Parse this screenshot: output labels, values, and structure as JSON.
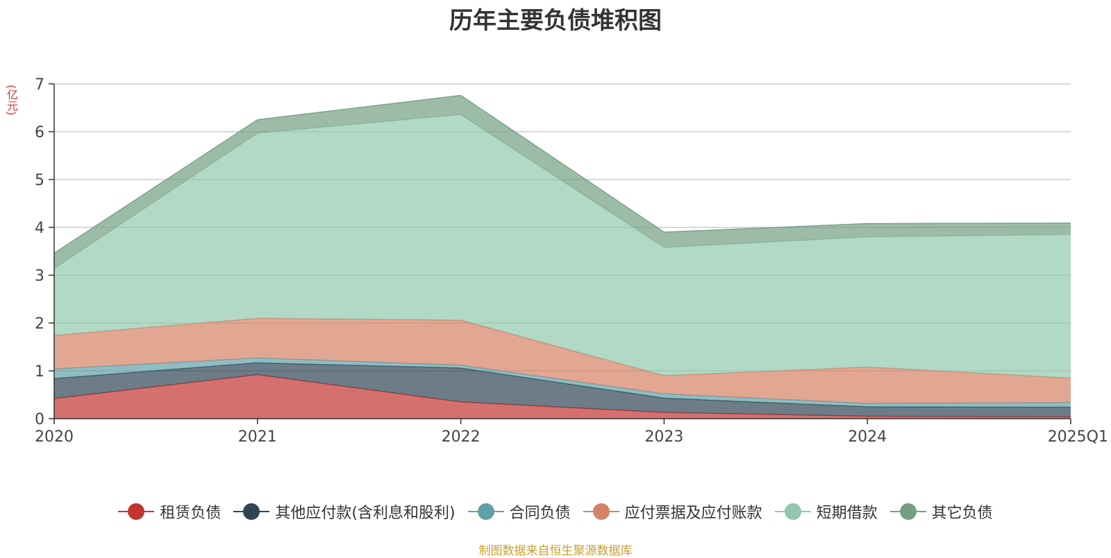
{
  "chart_data": {
    "type": "area",
    "stacked": true,
    "title": "历年主要负债堆积图",
    "unit_label": "(亿元)",
    "categories": [
      "2020",
      "2021",
      "2022",
      "2023",
      "2024",
      "2025Q1"
    ],
    "ylim": [
      0,
      7
    ],
    "yticks": [
      0,
      1,
      2,
      3,
      4,
      5,
      6,
      7
    ],
    "grid": true,
    "legend_position": "bottom",
    "series": [
      {
        "name": "租赁负债",
        "color": "#c23531",
        "values": [
          0.42,
          0.92,
          0.35,
          0.13,
          0.05,
          0.04
        ]
      },
      {
        "name": "其他应付款(含利息和股利)",
        "color": "#2f4554",
        "values": [
          0.42,
          0.25,
          0.71,
          0.3,
          0.2,
          0.2
        ]
      },
      {
        "name": "合同负债",
        "color": "#61a0a8",
        "values": [
          0.2,
          0.1,
          0.06,
          0.09,
          0.07,
          0.1
        ]
      },
      {
        "name": "应付票据及应付账款",
        "color": "#d48265",
        "values": [
          0.7,
          0.83,
          0.94,
          0.38,
          0.76,
          0.51
        ]
      },
      {
        "name": "短期借款",
        "color": "#91c7ae",
        "values": [
          1.4,
          3.87,
          4.3,
          2.68,
          2.72,
          3.0
        ]
      },
      {
        "name": "其它负债",
        "color": "#749f83",
        "values": [
          0.32,
          0.28,
          0.4,
          0.32,
          0.28,
          0.24
        ]
      }
    ]
  },
  "source_note": "制图数据来自恒生聚源数据库"
}
